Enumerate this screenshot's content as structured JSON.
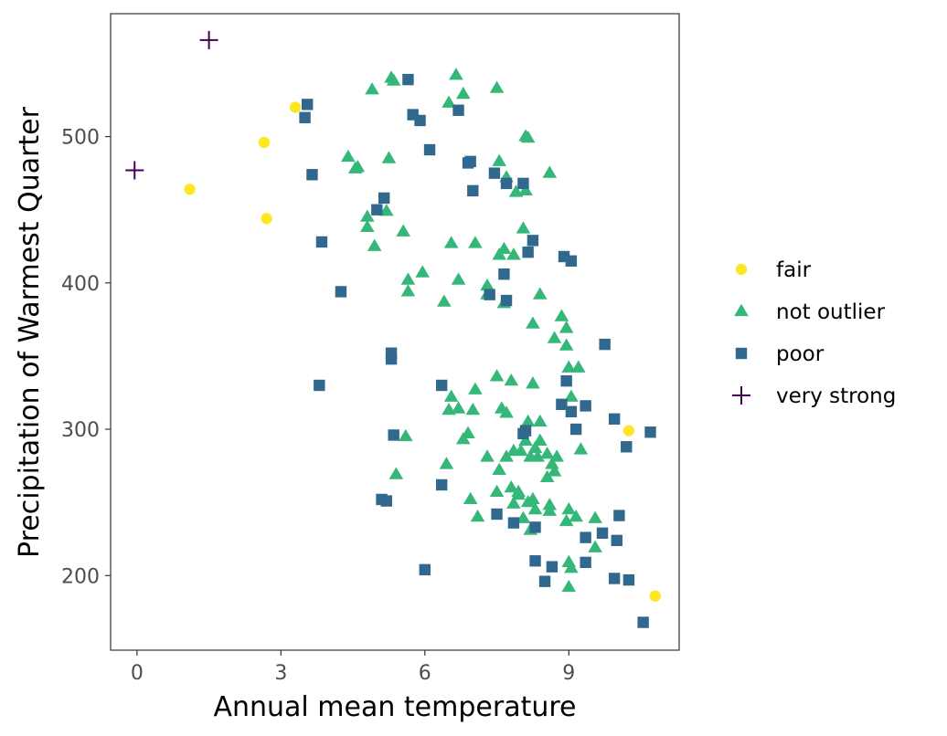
{
  "chart_data": {
    "type": "scatter",
    "xlabel": "Annual mean temperature",
    "ylabel": "Precipitation of Warmest Quarter",
    "xlim": [
      -0.55,
      11.3
    ],
    "ylim": [
      149,
      584
    ],
    "xticks": [
      0,
      3,
      6,
      9
    ],
    "yticks": [
      200,
      300,
      400,
      500
    ],
    "grid": false,
    "legend_position": "right",
    "series": [
      {
        "name": "fair",
        "marker": "circle",
        "color": "#FDE725",
        "points": [
          [
            3.3,
            520
          ],
          [
            2.65,
            496
          ],
          [
            1.1,
            464
          ],
          [
            2.7,
            444
          ],
          [
            10.25,
            299
          ],
          [
            10.8,
            186
          ]
        ]
      },
      {
        "name": "not outlier",
        "marker": "triangle",
        "color": "#35B779",
        "points": [
          [
            5.3,
            540
          ],
          [
            5.35,
            538
          ],
          [
            4.9,
            532
          ],
          [
            6.65,
            542
          ],
          [
            6.8,
            529
          ],
          [
            6.5,
            523
          ],
          [
            7.5,
            533
          ],
          [
            8.1,
            500
          ],
          [
            8.15,
            499
          ],
          [
            4.4,
            486
          ],
          [
            5.25,
            485
          ],
          [
            4.55,
            478
          ],
          [
            4.6,
            479
          ],
          [
            7.55,
            483
          ],
          [
            8.6,
            475
          ],
          [
            7.7,
            472
          ],
          [
            7.9,
            462
          ],
          [
            8.1,
            463
          ],
          [
            5.2,
            449
          ],
          [
            4.8,
            445
          ],
          [
            4.8,
            438
          ],
          [
            8.05,
            437
          ],
          [
            5.55,
            435
          ],
          [
            4.95,
            425
          ],
          [
            6.55,
            427
          ],
          [
            7.05,
            427
          ],
          [
            7.55,
            419
          ],
          [
            7.65,
            423
          ],
          [
            7.85,
            419
          ],
          [
            5.95,
            407
          ],
          [
            5.65,
            402
          ],
          [
            5.65,
            394
          ],
          [
            6.7,
            402
          ],
          [
            7.3,
            398
          ],
          [
            7.3,
            392
          ],
          [
            6.4,
            387
          ],
          [
            7.65,
            386
          ],
          [
            8.4,
            392
          ],
          [
            8.25,
            372
          ],
          [
            8.85,
            377
          ],
          [
            8.95,
            369
          ],
          [
            8.7,
            362
          ],
          [
            8.95,
            357
          ],
          [
            9.0,
            342
          ],
          [
            9.2,
            342
          ],
          [
            7.5,
            336
          ],
          [
            7.8,
            333
          ],
          [
            8.25,
            331
          ],
          [
            7.05,
            327
          ],
          [
            6.55,
            322
          ],
          [
            9.05,
            322
          ],
          [
            6.5,
            313
          ],
          [
            6.7,
            314
          ],
          [
            7.6,
            314
          ],
          [
            7.7,
            311
          ],
          [
            7.0,
            313
          ],
          [
            8.15,
            305
          ],
          [
            8.4,
            305
          ],
          [
            6.9,
            297
          ],
          [
            5.6,
            295
          ],
          [
            6.8,
            293
          ],
          [
            8.1,
            292
          ],
          [
            8.3,
            287
          ],
          [
            8.4,
            292
          ],
          [
            8.75,
            281
          ],
          [
            7.85,
            285
          ],
          [
            8.0,
            285
          ],
          [
            9.25,
            286
          ],
          [
            6.45,
            276
          ],
          [
            7.3,
            281
          ],
          [
            7.7,
            281
          ],
          [
            8.2,
            281
          ],
          [
            8.35,
            281
          ],
          [
            8.55,
            283
          ],
          [
            8.65,
            276
          ],
          [
            8.7,
            271
          ],
          [
            7.55,
            272
          ],
          [
            8.55,
            267
          ],
          [
            5.4,
            269
          ],
          [
            7.8,
            260
          ],
          [
            7.95,
            255
          ],
          [
            7.95,
            257
          ],
          [
            8.15,
            250
          ],
          [
            8.25,
            252
          ],
          [
            8.3,
            245
          ],
          [
            7.5,
            257
          ],
          [
            7.85,
            249
          ],
          [
            6.95,
            252
          ],
          [
            8.6,
            248
          ],
          [
            8.6,
            244
          ],
          [
            9.0,
            245
          ],
          [
            8.95,
            237
          ],
          [
            9.15,
            240
          ],
          [
            9.55,
            239
          ],
          [
            7.1,
            240
          ],
          [
            8.05,
            239
          ],
          [
            8.2,
            231
          ],
          [
            9.55,
            219
          ],
          [
            9.0,
            209
          ],
          [
            9.05,
            205
          ],
          [
            9.0,
            192
          ]
        ]
      },
      {
        "name": "poor",
        "marker": "square",
        "color": "#31688E",
        "points": [
          [
            5.65,
            539
          ],
          [
            3.55,
            522
          ],
          [
            3.5,
            513
          ],
          [
            5.75,
            515
          ],
          [
            5.9,
            511
          ],
          [
            6.7,
            518
          ],
          [
            6.1,
            491
          ],
          [
            6.9,
            482
          ],
          [
            6.95,
            483
          ],
          [
            7.45,
            475
          ],
          [
            7.7,
            468
          ],
          [
            8.05,
            468
          ],
          [
            3.65,
            474
          ],
          [
            7.0,
            463
          ],
          [
            5.15,
            458
          ],
          [
            5.0,
            450
          ],
          [
            3.85,
            428
          ],
          [
            8.25,
            429
          ],
          [
            8.15,
            421
          ],
          [
            8.9,
            418
          ],
          [
            9.05,
            415
          ],
          [
            7.65,
            406
          ],
          [
            4.25,
            394
          ],
          [
            7.35,
            392
          ],
          [
            7.7,
            388
          ],
          [
            9.75,
            358
          ],
          [
            5.3,
            352
          ],
          [
            5.3,
            348
          ],
          [
            3.8,
            330
          ],
          [
            8.95,
            333
          ],
          [
            6.35,
            330
          ],
          [
            9.35,
            316
          ],
          [
            8.85,
            317
          ],
          [
            9.05,
            312
          ],
          [
            8.1,
            299
          ],
          [
            9.15,
            300
          ],
          [
            8.05,
            297
          ],
          [
            9.95,
            307
          ],
          [
            10.7,
            298
          ],
          [
            5.35,
            296
          ],
          [
            10.2,
            288
          ],
          [
            6.35,
            262
          ],
          [
            5.1,
            252
          ],
          [
            5.2,
            251
          ],
          [
            7.5,
            242
          ],
          [
            7.85,
            236
          ],
          [
            8.3,
            233
          ],
          [
            10.05,
            241
          ],
          [
            9.7,
            229
          ],
          [
            9.35,
            226
          ],
          [
            10.0,
            224
          ],
          [
            8.3,
            210
          ],
          [
            8.65,
            206
          ],
          [
            9.35,
            209
          ],
          [
            8.5,
            196
          ],
          [
            9.95,
            198
          ],
          [
            10.25,
            197
          ],
          [
            6.0,
            204
          ],
          [
            10.55,
            168
          ]
        ]
      },
      {
        "name": "very strong",
        "marker": "plus",
        "color": "#440154",
        "points": [
          [
            1.5,
            566
          ],
          [
            -0.05,
            477
          ]
        ]
      }
    ]
  }
}
